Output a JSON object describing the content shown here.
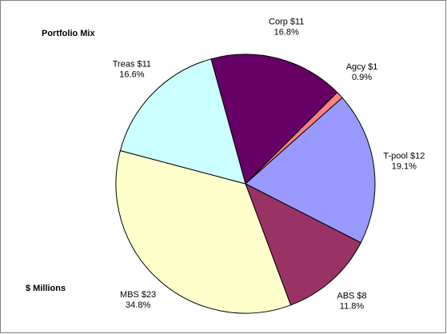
{
  "chart_data": {
    "type": "pie",
    "title": "Portfolio Mix",
    "subtitle": "$ Millions",
    "categories": [
      "Corp",
      "Agcy",
      "T-pool",
      "ABS",
      "MBS",
      "Treas"
    ],
    "amount_labels": [
      "$11",
      "$1",
      "$12",
      "$8",
      "$23",
      "$11"
    ],
    "values": [
      16.8,
      0.9,
      19.1,
      11.8,
      34.8,
      16.6
    ],
    "value_labels": [
      "16.8%",
      "0.9%",
      "19.1%",
      "11.8%",
      "34.8%",
      "16.6%"
    ],
    "colors": [
      "#660066",
      "#ff8080",
      "#9999ff",
      "#993366",
      "#ffffcc",
      "#ccffff"
    ]
  }
}
